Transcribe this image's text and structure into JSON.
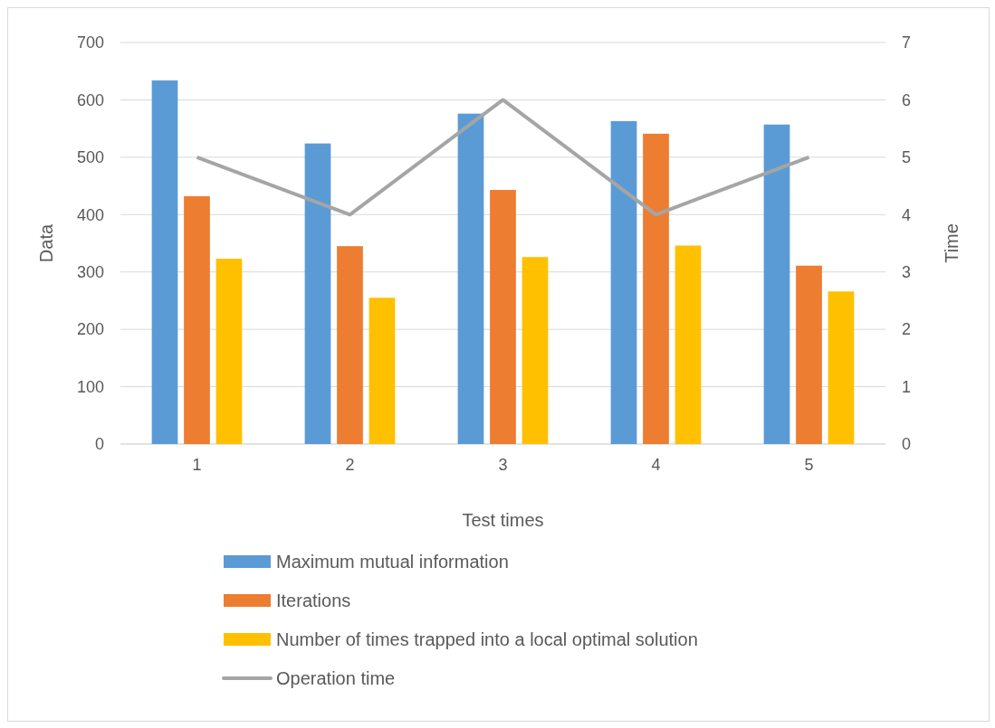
{
  "chart_data": {
    "type": "bar",
    "xlabel": "Test times",
    "ylabel": "Data",
    "y2label": "Time",
    "categories": [
      "1",
      "2",
      "3",
      "4",
      "5"
    ],
    "series": [
      {
        "name": "Maximum mutual information",
        "color": "#5b9bd5",
        "values": [
          634,
          524,
          576,
          563,
          557
        ]
      },
      {
        "name": "Iterations",
        "color": "#ed7d31",
        "values": [
          432,
          345,
          443,
          541,
          311
        ]
      },
      {
        "name": "Number of times trapped into a local optimal solution",
        "color": "#ffc000",
        "values": [
          323,
          255,
          326,
          346,
          266
        ]
      },
      {
        "name": "Operation time",
        "type": "line",
        "axis": "y2",
        "color": "#a5a5a5",
        "values": [
          5,
          4,
          6,
          4,
          5
        ]
      }
    ],
    "ylim": [
      0,
      700
    ],
    "yticks": [
      0,
      100,
      200,
      300,
      400,
      500,
      600,
      700
    ],
    "y2lim": [
      0,
      7
    ],
    "y2ticks": [
      0,
      1,
      2,
      3,
      4,
      5,
      6,
      7
    ],
    "grid": "y",
    "legend": "bottom",
    "marker": "none"
  }
}
